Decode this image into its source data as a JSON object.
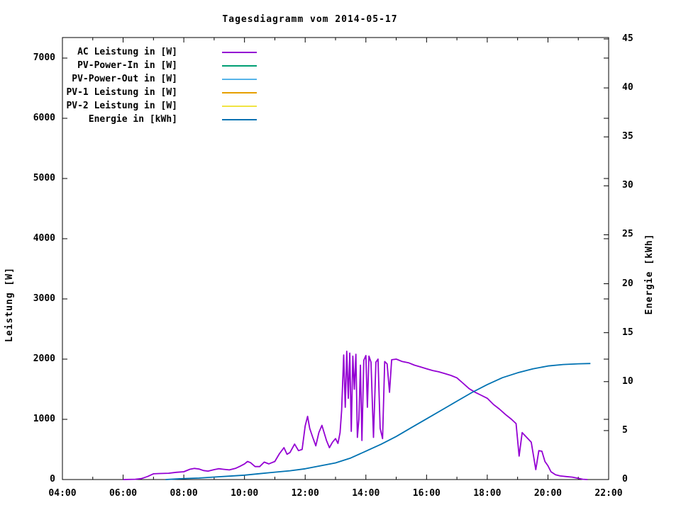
{
  "chart_data": {
    "type": "line",
    "title": "Tagesdiagramm vom 2014-05-17",
    "background_color": "#ffffff",
    "grid": false,
    "legend_position": "top-left-inside",
    "x_axis": {
      "unit": "time of day",
      "start_hour": 4,
      "end_hour": 22,
      "major_tick_every_hours": 2,
      "minor_tick_every_hours": 1,
      "ticks": [
        {
          "label": "04:00",
          "hour": 4
        },
        {
          "label": "06:00",
          "hour": 6
        },
        {
          "label": "08:00",
          "hour": 8
        },
        {
          "label": "10:00",
          "hour": 10
        },
        {
          "label": "12:00",
          "hour": 12
        },
        {
          "label": "14:00",
          "hour": 14
        },
        {
          "label": "16:00",
          "hour": 16
        },
        {
          "label": "18:00",
          "hour": 18
        },
        {
          "label": "20:00",
          "hour": 20
        },
        {
          "label": "22:00",
          "hour": 22
        }
      ]
    },
    "y_left": {
      "label": "Leistung [W]",
      "min": 0,
      "max": 7000,
      "tick_step": 1000,
      "ticks": [
        {
          "label": "0",
          "value": 0
        },
        {
          "label": "1000",
          "value": 1000
        },
        {
          "label": "2000",
          "value": 2000
        },
        {
          "label": "3000",
          "value": 3000
        },
        {
          "label": "4000",
          "value": 4000
        },
        {
          "label": "5000",
          "value": 5000
        },
        {
          "label": "6000",
          "value": 6000
        },
        {
          "label": "7000",
          "value": 7000
        }
      ]
    },
    "y_right": {
      "label": "Energie [kWh]",
      "min": 0,
      "max": 45,
      "tick_step": 5,
      "ticks": [
        {
          "label": "0",
          "value": 0
        },
        {
          "label": "5",
          "value": 5
        },
        {
          "label": "10",
          "value": 10
        },
        {
          "label": "15",
          "value": 15
        },
        {
          "label": "20",
          "value": 20
        },
        {
          "label": "25",
          "value": 25
        },
        {
          "label": "30",
          "value": 30
        },
        {
          "label": "35",
          "value": 35
        },
        {
          "label": "40",
          "value": 40
        },
        {
          "label": "45",
          "value": 45
        }
      ]
    },
    "legend": [
      {
        "label": "AC Leistung in [W]",
        "color": "#9400d3"
      },
      {
        "label": "PV-Power-In in [W]",
        "color": "#009e73"
      },
      {
        "label": "PV-Power-Out in [W]",
        "color": "#56b4e9"
      },
      {
        "label": "PV-1 Leistung in [W]",
        "color": "#e69f00"
      },
      {
        "label": "PV-2 Leistung in [W]",
        "color": "#f0e442"
      },
      {
        "label": "Energie in [kWh]",
        "color": "#0072b2"
      }
    ],
    "series": [
      {
        "id": "ac-leistung",
        "name": "AC Leistung in [W]",
        "color": "#9400d3",
        "axis": "left",
        "points": [
          [
            6.0,
            0
          ],
          [
            6.4,
            5
          ],
          [
            6.6,
            15
          ],
          [
            6.8,
            50
          ],
          [
            7.0,
            95
          ],
          [
            7.2,
            100
          ],
          [
            7.5,
            105
          ],
          [
            7.75,
            120
          ],
          [
            8.0,
            130
          ],
          [
            8.2,
            170
          ],
          [
            8.35,
            185
          ],
          [
            8.5,
            175
          ],
          [
            8.65,
            150
          ],
          [
            8.8,
            140
          ],
          [
            9.0,
            165
          ],
          [
            9.15,
            180
          ],
          [
            9.3,
            170
          ],
          [
            9.5,
            160
          ],
          [
            9.7,
            185
          ],
          [
            9.85,
            220
          ],
          [
            10.0,
            260
          ],
          [
            10.1,
            300
          ],
          [
            10.2,
            280
          ],
          [
            10.35,
            215
          ],
          [
            10.5,
            215
          ],
          [
            10.65,
            290
          ],
          [
            10.8,
            260
          ],
          [
            11.0,
            300
          ],
          [
            11.15,
            430
          ],
          [
            11.3,
            530
          ],
          [
            11.4,
            420
          ],
          [
            11.5,
            450
          ],
          [
            11.65,
            590
          ],
          [
            11.78,
            480
          ],
          [
            11.9,
            500
          ],
          [
            12.0,
            890
          ],
          [
            12.08,
            1050
          ],
          [
            12.15,
            850
          ],
          [
            12.25,
            700
          ],
          [
            12.35,
            560
          ],
          [
            12.45,
            780
          ],
          [
            12.55,
            900
          ],
          [
            12.7,
            650
          ],
          [
            12.8,
            530
          ],
          [
            12.9,
            620
          ],
          [
            13.0,
            680
          ],
          [
            13.08,
            600
          ],
          [
            13.15,
            780
          ],
          [
            13.2,
            1150
          ],
          [
            13.27,
            2070
          ],
          [
            13.32,
            1200
          ],
          [
            13.37,
            2130
          ],
          [
            13.42,
            1350
          ],
          [
            13.47,
            2100
          ],
          [
            13.52,
            800
          ],
          [
            13.57,
            2050
          ],
          [
            13.62,
            1500
          ],
          [
            13.67,
            2080
          ],
          [
            13.72,
            700
          ],
          [
            13.77,
            1000
          ],
          [
            13.82,
            1900
          ],
          [
            13.87,
            650
          ],
          [
            13.93,
            1980
          ],
          [
            14.0,
            2060
          ],
          [
            14.05,
            1200
          ],
          [
            14.1,
            2050
          ],
          [
            14.17,
            1950
          ],
          [
            14.25,
            700
          ],
          [
            14.33,
            1950
          ],
          [
            14.4,
            2000
          ],
          [
            14.47,
            850
          ],
          [
            14.55,
            680
          ],
          [
            14.62,
            1960
          ],
          [
            14.7,
            1920
          ],
          [
            14.78,
            1450
          ],
          [
            14.85,
            1990
          ],
          [
            15.0,
            2000
          ],
          [
            15.2,
            1960
          ],
          [
            15.4,
            1940
          ],
          [
            15.6,
            1900
          ],
          [
            15.8,
            1870
          ],
          [
            16.0,
            1840
          ],
          [
            16.2,
            1810
          ],
          [
            16.4,
            1790
          ],
          [
            16.6,
            1760
          ],
          [
            16.8,
            1730
          ],
          [
            17.0,
            1690
          ],
          [
            17.2,
            1600
          ],
          [
            17.4,
            1510
          ],
          [
            17.6,
            1450
          ],
          [
            17.8,
            1400
          ],
          [
            18.0,
            1350
          ],
          [
            18.2,
            1250
          ],
          [
            18.4,
            1170
          ],
          [
            18.6,
            1080
          ],
          [
            18.8,
            1000
          ],
          [
            18.95,
            930
          ],
          [
            19.05,
            390
          ],
          [
            19.15,
            780
          ],
          [
            19.3,
            700
          ],
          [
            19.45,
            620
          ],
          [
            19.6,
            165
          ],
          [
            19.7,
            480
          ],
          [
            19.8,
            470
          ],
          [
            19.9,
            300
          ],
          [
            20.0,
            230
          ],
          [
            20.1,
            130
          ],
          [
            20.25,
            80
          ],
          [
            20.4,
            60
          ],
          [
            20.6,
            50
          ],
          [
            20.8,
            40
          ],
          [
            21.0,
            20
          ],
          [
            21.15,
            5
          ],
          [
            21.3,
            0
          ]
        ]
      },
      {
        "id": "pv-power-in",
        "name": "PV-Power-In in [W]",
        "color": "#009e73",
        "axis": "left",
        "points": []
      },
      {
        "id": "pv-power-out",
        "name": "PV-Power-Out in [W]",
        "color": "#56b4e9",
        "axis": "left",
        "points": []
      },
      {
        "id": "pv-1-leistung",
        "name": "PV-1 Leistung in [W]",
        "color": "#e69f00",
        "axis": "left",
        "points": []
      },
      {
        "id": "pv-2-leistung",
        "name": "PV-2 Leistung in [W]",
        "color": "#f0e442",
        "axis": "left",
        "points": []
      },
      {
        "id": "energie",
        "name": "Energie in [kWh]",
        "color": "#0072b2",
        "axis": "right",
        "points": [
          [
            7.4,
            0
          ],
          [
            7.7,
            0.05
          ],
          [
            8.0,
            0.1
          ],
          [
            8.5,
            0.15
          ],
          [
            9.0,
            0.25
          ],
          [
            9.5,
            0.35
          ],
          [
            10.0,
            0.45
          ],
          [
            10.5,
            0.6
          ],
          [
            11.0,
            0.75
          ],
          [
            11.5,
            0.9
          ],
          [
            12.0,
            1.1
          ],
          [
            12.5,
            1.4
          ],
          [
            13.0,
            1.7
          ],
          [
            13.5,
            2.2
          ],
          [
            14.0,
            2.9
          ],
          [
            14.5,
            3.6
          ],
          [
            15.0,
            4.4
          ],
          [
            15.5,
            5.3
          ],
          [
            16.0,
            6.2
          ],
          [
            16.5,
            7.1
          ],
          [
            17.0,
            8.0
          ],
          [
            17.5,
            8.9
          ],
          [
            18.0,
            9.7
          ],
          [
            18.5,
            10.4
          ],
          [
            19.0,
            10.9
          ],
          [
            19.5,
            11.3
          ],
          [
            20.0,
            11.6
          ],
          [
            20.5,
            11.75
          ],
          [
            21.0,
            11.82
          ],
          [
            21.4,
            11.85
          ]
        ]
      }
    ]
  }
}
